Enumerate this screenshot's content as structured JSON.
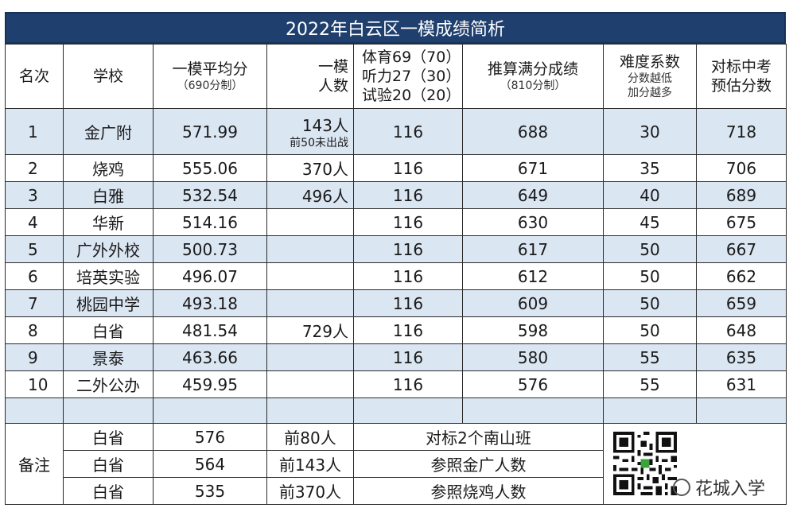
{
  "title": "2022年白云区一模成绩简析",
  "headers": {
    "rank": "名次",
    "school": "学校",
    "avg_line1": "一模平均分",
    "avg_line2": "（690分制）",
    "count_line1": "一模",
    "count_line2": "人数",
    "pe_line1": "体育69（70）",
    "pe_line2": "听力27（30）",
    "pe_line3": "试验20（20）",
    "full_line1": "推算满分成绩",
    "full_line2": "（810分制）",
    "diff_line1": "难度系数",
    "diff_line2": "分数越低",
    "diff_line3": "加分越多",
    "target_line1": "对标中考",
    "target_line2": "预估分数"
  },
  "rows": [
    {
      "rank": "1",
      "school": "金广附",
      "avg": "571.99",
      "count": "143人",
      "count_note": "前50未出战",
      "pe": "116",
      "full": "688",
      "diff": "30",
      "target": "718"
    },
    {
      "rank": "2",
      "school": "烧鸡",
      "avg": "555.06",
      "count": "370人",
      "count_note": "",
      "pe": "116",
      "full": "671",
      "diff": "35",
      "target": "706"
    },
    {
      "rank": "3",
      "school": "白雅",
      "avg": "532.54",
      "count": "496人",
      "count_note": "",
      "pe": "116",
      "full": "649",
      "diff": "40",
      "target": "689"
    },
    {
      "rank": "4",
      "school": "华新",
      "avg": "514.16",
      "count": "",
      "count_note": "",
      "pe": "116",
      "full": "630",
      "diff": "45",
      "target": "675"
    },
    {
      "rank": "5",
      "school": "广外外校",
      "avg": "500.73",
      "count": "",
      "count_note": "",
      "pe": "116",
      "full": "617",
      "diff": "50",
      "target": "667"
    },
    {
      "rank": "6",
      "school": "培英实验",
      "avg": "496.07",
      "count": "",
      "count_note": "",
      "pe": "116",
      "full": "612",
      "diff": "50",
      "target": "662"
    },
    {
      "rank": "7",
      "school": "桃园中学",
      "avg": "493.18",
      "count": "",
      "count_note": "",
      "pe": "116",
      "full": "609",
      "diff": "50",
      "target": "659"
    },
    {
      "rank": "8",
      "school": "白省",
      "avg": "481.54",
      "count": "729人",
      "count_note": "",
      "pe": "116",
      "full": "598",
      "diff": "50",
      "target": "648"
    },
    {
      "rank": "9",
      "school": "景泰",
      "avg": "463.66",
      "count": "",
      "count_note": "",
      "pe": "116",
      "full": "580",
      "diff": "55",
      "target": "635"
    },
    {
      "rank": "10",
      "school": "二外公办",
      "avg": "459.95",
      "count": "",
      "count_note": "",
      "pe": "116",
      "full": "576",
      "diff": "55",
      "target": "631"
    }
  ],
  "notes_label": "备注",
  "notes": [
    {
      "school": "白省",
      "score": "576",
      "rank": "前80人",
      "remark": "对标2个南山班"
    },
    {
      "school": "白省",
      "score": "564",
      "rank": "前143人",
      "remark": "参照金广人数"
    },
    {
      "school": "白省",
      "score": "535",
      "rank": "前370人",
      "remark": "参照烧鸡人数"
    }
  ],
  "watermark": "花城入学",
  "colors": {
    "title_bg": "#1f3f6e",
    "band": "#dbe6f3"
  }
}
